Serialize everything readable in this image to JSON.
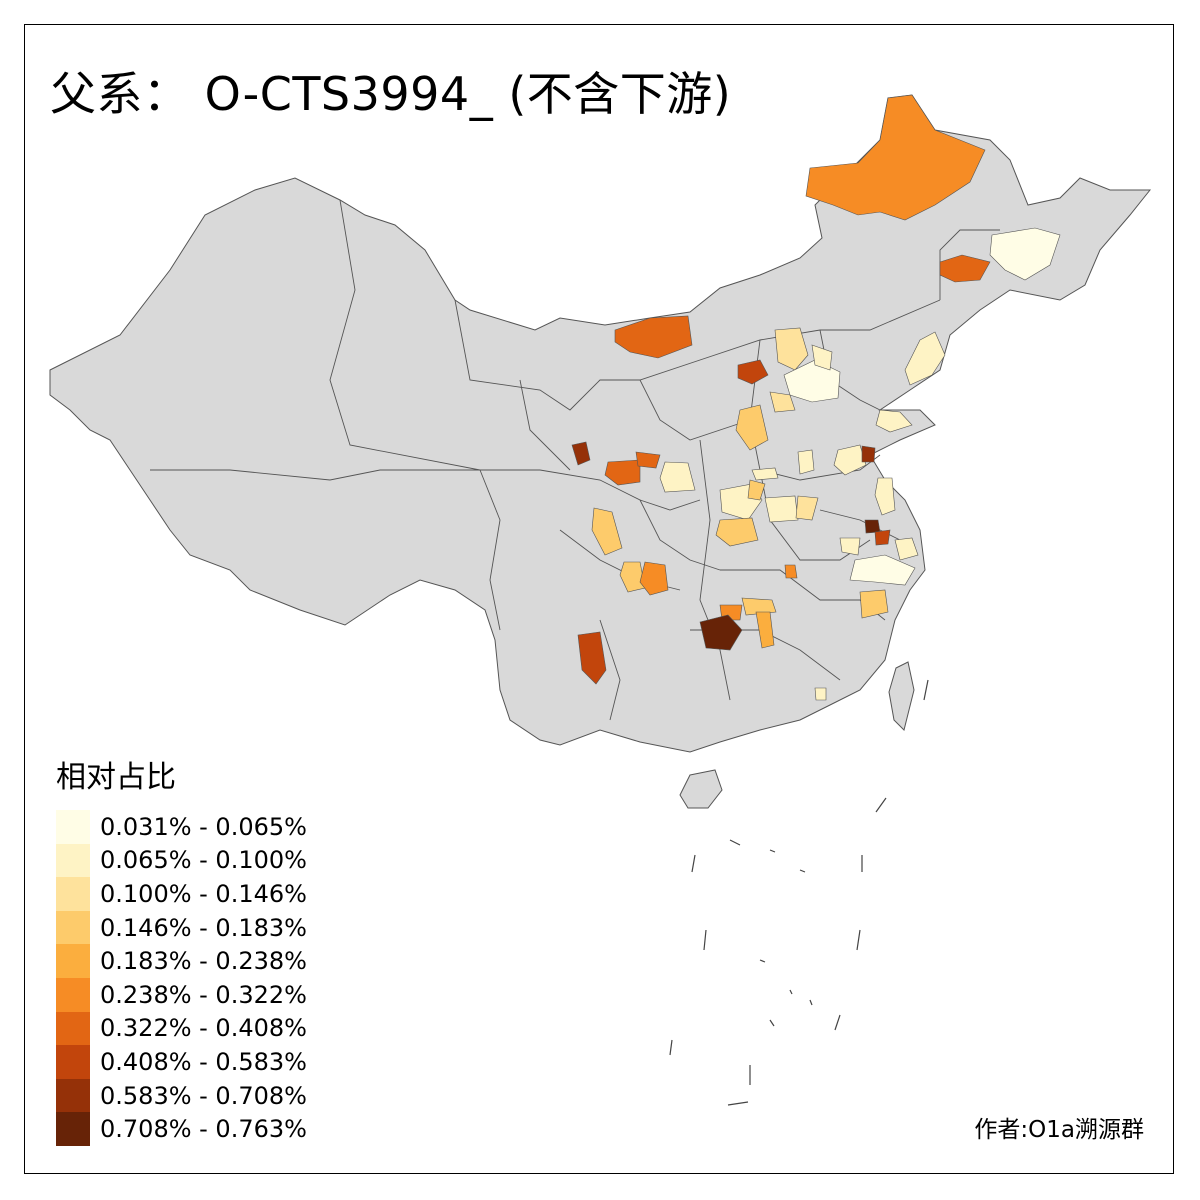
{
  "title": "父系： O-CTS3994_ (不含下游)",
  "legend": {
    "title": "相对占比",
    "items": [
      {
        "label": "0.031% - 0.065%",
        "color": "#FFFDE6"
      },
      {
        "label": "0.065% - 0.100%",
        "color": "#FEF3C5"
      },
      {
        "label": "0.100% - 0.146%",
        "color": "#FEE29C"
      },
      {
        "label": "0.146% - 0.183%",
        "color": "#FDCB6B"
      },
      {
        "label": "0.183% - 0.238%",
        "color": "#FBAE3E"
      },
      {
        "label": "0.238% - 0.322%",
        "color": "#F68C25"
      },
      {
        "label": "0.322% - 0.408%",
        "color": "#E26614"
      },
      {
        "label": "0.408% - 0.583%",
        "color": "#C2450C"
      },
      {
        "label": "0.583% - 0.708%",
        "color": "#953108"
      },
      {
        "label": "0.708% - 0.763%",
        "color": "#672307"
      }
    ]
  },
  "credit": "作者:O1a溯源群",
  "colors": {
    "base_region": "#D9D9D9",
    "border": "#555555",
    "frame": "#000000"
  }
}
